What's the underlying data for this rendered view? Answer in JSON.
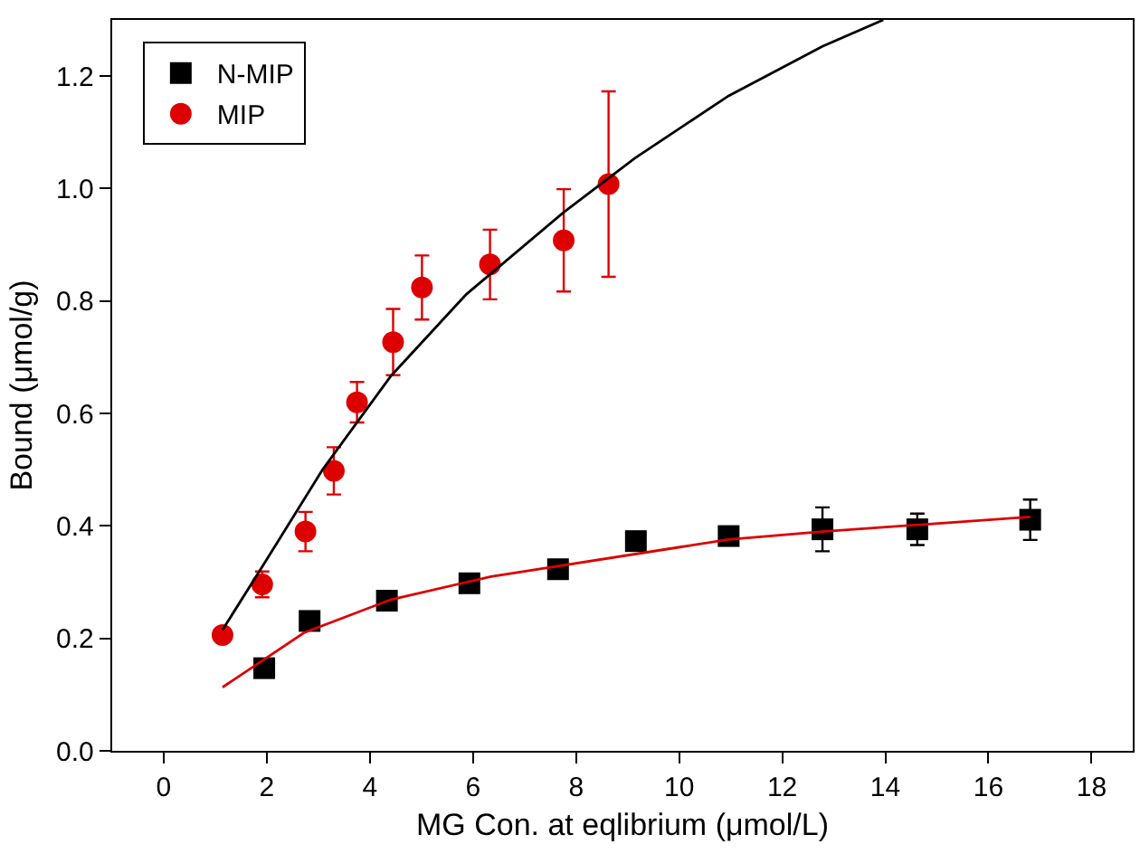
{
  "chart_data": {
    "type": "scatter",
    "xlabel": "MG Con. at eqlibrium (μmol/L)",
    "ylabel": "Bound (μmol/g)",
    "xlim": [
      -1,
      18.8
    ],
    "xticks": [
      0,
      2,
      4,
      6,
      8,
      10,
      12,
      14,
      16,
      18
    ],
    "ylim": [
      0,
      1.3
    ],
    "yticks": [
      {
        "value": 0,
        "label": "0.0"
      },
      {
        "value": 0.2,
        "label": "0.2"
      },
      {
        "value": 0.4,
        "label": "0.4"
      },
      {
        "value": 0.6,
        "label": "0.6"
      },
      {
        "value": 0.8,
        "label": "0.8"
      },
      {
        "value": 1.0,
        "label": "1.0"
      },
      {
        "value": 1.2,
        "label": "1.2"
      }
    ],
    "grid": false,
    "legend": "top left",
    "series": [
      {
        "name": "N-MIP",
        "marker": "square",
        "color": "#000000",
        "x": [
          1.95,
          2.83,
          4.33,
          5.93,
          7.65,
          9.16,
          10.96,
          12.78,
          14.62,
          16.81
        ],
        "values": [
          0.147,
          0.231,
          0.267,
          0.298,
          0.323,
          0.373,
          0.382,
          0.394,
          0.394,
          0.411
        ],
        "errors": [
          null,
          null,
          null,
          null,
          null,
          null,
          null,
          0.039,
          0.028,
          0.036
        ]
      },
      {
        "name": "MIP",
        "marker": "circle",
        "color": "#dd0000",
        "x": [
          1.14,
          1.91,
          2.75,
          3.3,
          3.75,
          4.45,
          5.01,
          6.33,
          7.76,
          8.63
        ],
        "values": [
          0.206,
          0.296,
          0.39,
          0.498,
          0.62,
          0.727,
          0.824,
          0.865,
          0.908,
          1.008
        ],
        "errors": [
          null,
          0.023,
          0.035,
          0.042,
          0.036,
          0.059,
          0.057,
          0.062,
          0.091,
          0.165
        ]
      },
      {
        "type": "line",
        "marker": "none",
        "color": "#000000",
        "x": [
          1.14,
          1.99,
          3.08,
          4.41,
          5.87,
          7.75,
          9.14,
          10.96,
          12.78,
          13.96
        ],
        "values": [
          0.215,
          0.339,
          0.5,
          0.667,
          0.812,
          0.957,
          1.054,
          1.165,
          1.253,
          1.3
        ]
      },
      {
        "type": "line",
        "marker": "none",
        "color": "#dd0000",
        "x": [
          1.14,
          2.72,
          4.41,
          6.35,
          9.99,
          10.96,
          12.78,
          16.81
        ],
        "values": [
          0.113,
          0.21,
          0.269,
          0.31,
          0.362,
          0.376,
          0.39,
          0.416
        ]
      }
    ]
  }
}
